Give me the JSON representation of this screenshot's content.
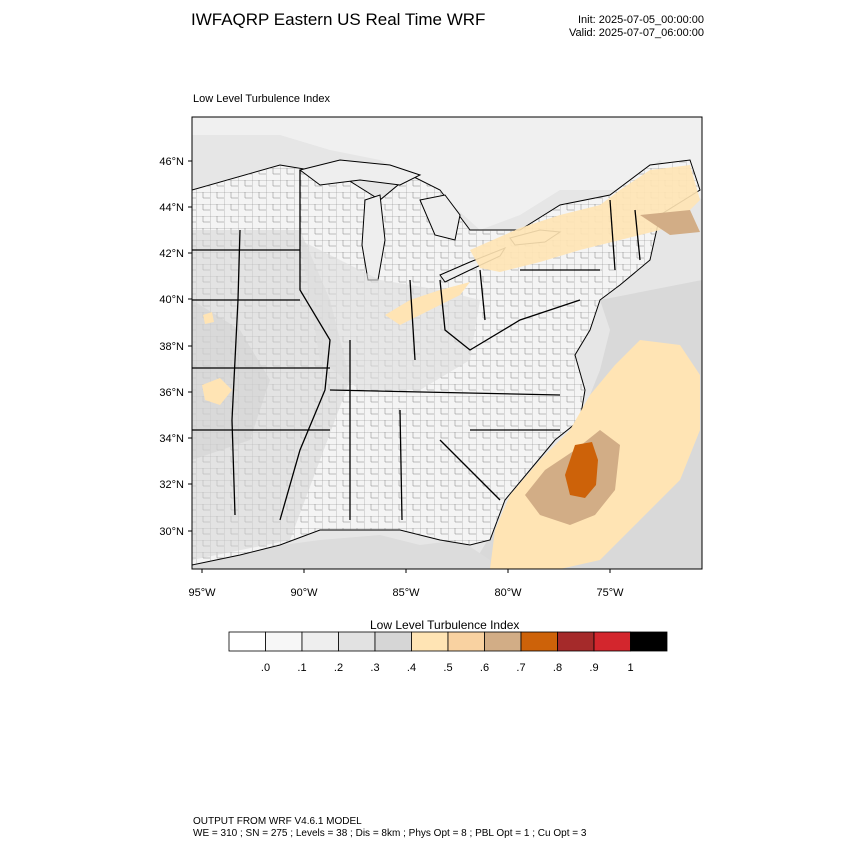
{
  "header": {
    "title": "IWFAQRP Eastern US Real Time WRF",
    "init": "Init: 2025-07-05_00:00:00",
    "valid": "Valid: 2025-07-07_06:00:00"
  },
  "map": {
    "label": "Low Level Turbulence Index",
    "lat_ticks": [
      "46°N",
      "44°N",
      "42°N",
      "40°N",
      "38°N",
      "36°N",
      "34°N",
      "32°N",
      "30°N"
    ],
    "lon_ticks": [
      "95°W",
      "90°W",
      "85°W",
      "80°W",
      "75°W"
    ]
  },
  "colorbar": {
    "title": "Low Level Turbulence Index",
    "colors": [
      "#ffffff",
      "#f7f7f7",
      "#eeeeee",
      "#e2e2e2",
      "#d6d6d6",
      "#ffe4b4",
      "#f9d2a1",
      "#d2ad86",
      "#cd6209",
      "#a52a2a",
      "#d3262d",
      "#000000"
    ],
    "labels": [
      ".0",
      ".1",
      ".2",
      ".3",
      ".4",
      ".5",
      ".6",
      ".7",
      ".8",
      ".9",
      "1"
    ]
  },
  "footer": {
    "line1": "OUTPUT FROM WRF V4.6.1 MODEL",
    "line2": "WE = 310 ; SN = 275 ; Levels = 38 ; Dis = 8km ; Phys Opt = 8 ; PBL Opt = 1 ; Cu Opt = 3"
  }
}
